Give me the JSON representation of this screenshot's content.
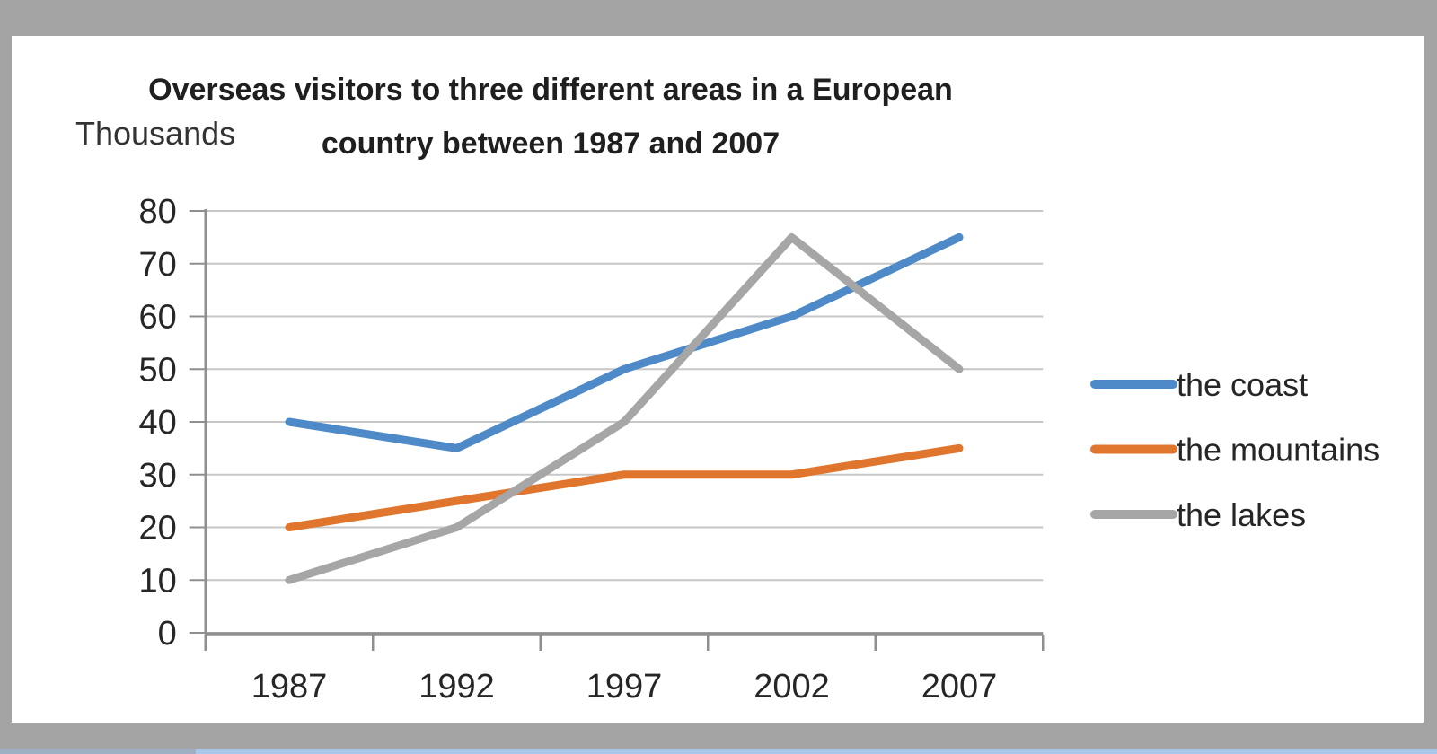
{
  "window": {
    "frame_color": "#a4a4a4",
    "panel_color": "#ffffff",
    "bottom_strip_left_color": "#9fb0c4",
    "bottom_strip_right_color": "#a9c7e8"
  },
  "chart_data": {
    "type": "line",
    "title": "Overseas visitors to three different areas in a European country between 1987 and 2007",
    "title_lines": [
      "Overseas visitors to three different areas in a European",
      "country between 1987 and 2007"
    ],
    "y_axis_label": "Thousands",
    "categories": [
      "1987",
      "1992",
      "1997",
      "2002",
      "2007"
    ],
    "y_ticks": [
      0,
      10,
      20,
      30,
      40,
      50,
      60,
      70,
      80
    ],
    "ylim": [
      0,
      80
    ],
    "grid": true,
    "legend_position": "right",
    "series": [
      {
        "name": "the coast",
        "color": "#4e8ac8",
        "values": [
          40,
          35,
          50,
          60,
          75
        ]
      },
      {
        "name": "the mountains",
        "color": "#e0752d",
        "values": [
          20,
          25,
          30,
          30,
          35
        ]
      },
      {
        "name": "the lakes",
        "color": "#a6a6a6",
        "values": [
          10,
          20,
          40,
          75,
          50
        ]
      }
    ],
    "colors": {
      "text": "#262626",
      "gridline": "#c7c7c7",
      "axis": "#8f8f8f"
    }
  }
}
